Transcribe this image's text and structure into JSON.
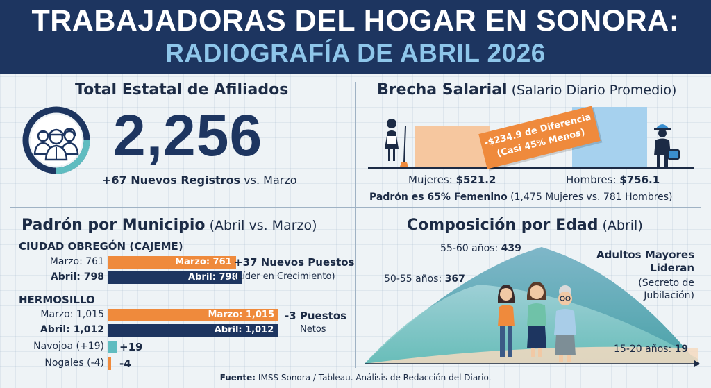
{
  "header": {
    "title_line1": "TRABAJADORAS DEL HOGAR EN SONORA:",
    "title_line2": "RADIOGRAFÍA DE ABRIL 2026"
  },
  "total": {
    "title": "Total Estatal de Afiliados",
    "value": "2,256",
    "new_bold": "+67 Nuevos Registros",
    "new_rest": " vs. Marzo"
  },
  "wage": {
    "title": "Brecha Salarial",
    "subtitle": " (Salario Diario Promedio)",
    "badge_line1": "-$234.9 de Diferencia",
    "badge_line2": "(Casi 45% Menos)",
    "women_label": "Mujeres: ",
    "women_value": "$521.2",
    "men_label": "Hombres: ",
    "men_value": "$756.1",
    "padron_bold": "Padrón es 65% Femenino",
    "padron_rest": " (1,475 Mujeres vs. 781 Hombres)"
  },
  "municipio": {
    "title": "Padrón por Municipio",
    "subtitle": " (Abril vs. Marzo)",
    "obregon": {
      "name": "CIUDAD OBREGÓN (CAJEME)",
      "marzo_label": "Marzo: 761",
      "abril_label": "Abril: 798",
      "marzo_bar": "Marzo: 761",
      "abril_bar": "Abril: 798",
      "delta": "+37 Nuevos Puestos",
      "delta_sub": "(Líder en Crecimiento)"
    },
    "hermosillo": {
      "name": "HERMOSILLO",
      "marzo_label": "Marzo: 1,015",
      "abril_label": "Abril: 1,012",
      "marzo_bar": "Marzo: 1,015",
      "abril_bar": "Abril: 1,012",
      "delta": "-3 Puestos",
      "delta_sub": "Netos"
    },
    "navojoa": {
      "label": "Navojoa (+19)",
      "delta": "+19"
    },
    "nogales": {
      "label": "Nogales (-4)",
      "delta": "-4"
    }
  },
  "edad": {
    "title": "Composición por Edad",
    "subtitle": " (Abril)",
    "g1_label": "55-60 años: ",
    "g1_value": "439",
    "g2_label": "50-55 años: ",
    "g2_value": "367",
    "g3_label": "15-20 años: ",
    "g3_value": "19",
    "senior_line1": "Adultos Mayores",
    "senior_line2": "Lideran",
    "senior_sub1": "(Secreto de",
    "senior_sub2": "Jubilación)"
  },
  "footer": {
    "source_bold": "Fuente:",
    "source_rest": " IMSS Sonora / Tableau. Análisis de Redacción del Diario."
  },
  "colors": {
    "navy": "#1d3560",
    "orange": "#ef8a3c",
    "peach": "#f6c79f",
    "light_blue": "#a6d1ee",
    "teal": "#5fbcc0"
  },
  "chart_data": [
    {
      "type": "bar",
      "title": "Padrón por Municipio",
      "categories": [
        "Ciudad Obregón (Cajeme)",
        "Hermosillo"
      ],
      "series": [
        {
          "name": "Marzo",
          "values": [
            761,
            1015
          ]
        },
        {
          "name": "Abril",
          "values": [
            798,
            1012
          ]
        }
      ],
      "changes": [
        {
          "category": "Navojoa",
          "value": 19
        },
        {
          "category": "Nogales",
          "value": -4
        }
      ]
    },
    {
      "type": "bar",
      "title": "Brecha Salarial",
      "categories": [
        "Mujeres",
        "Hombres"
      ],
      "values": [
        521.2,
        756.1
      ]
    },
    {
      "type": "area",
      "title": "Composición por Edad",
      "categories": [
        "50-55 años",
        "55-60 años",
        "15-20 años"
      ],
      "values": [
        367,
        439,
        19
      ]
    }
  ]
}
